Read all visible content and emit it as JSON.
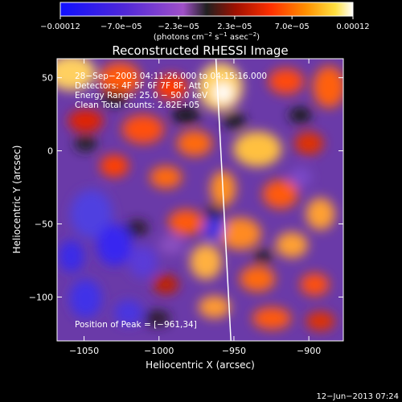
{
  "chart_data": {
    "type": "heatmap",
    "title": "Reconstructed RHESSI Image",
    "xlabel": "Heliocentric X (arcsec)",
    "ylabel": "Heliocentric Y (arcsec)",
    "xlim": [
      -1068,
      -877
    ],
    "ylim": [
      -130,
      63
    ],
    "x_ticks": [
      {
        "value": -1050,
        "label": "−1050"
      },
      {
        "value": -1000,
        "label": "−1000"
      },
      {
        "value": -950,
        "label": "−950"
      },
      {
        "value": -900,
        "label": "−900"
      }
    ],
    "y_ticks": [
      {
        "value": 50,
        "label": "50"
      },
      {
        "value": 0,
        "label": "0"
      },
      {
        "value": -50,
        "label": "−50"
      },
      {
        "value": -100,
        "label": "−100"
      }
    ],
    "colorbar": {
      "range": [
        -0.00012,
        0.00012
      ],
      "ticks": [
        {
          "value": -0.00012,
          "label": "−0.00012"
        },
        {
          "value": -7e-05,
          "label": "−7.0e−05"
        },
        {
          "value": -2.3e-05,
          "label": "−2.3e−05"
        },
        {
          "value": 2.3e-05,
          "label": "2.3e−05"
        },
        {
          "value": 7e-05,
          "label": "7.0e−05"
        },
        {
          "value": 0.00012,
          "label": "0.00012"
        }
      ],
      "unit_parts": [
        "(photons cm",
        "−2",
        " s",
        "−1",
        " asec",
        "−2",
        ")"
      ]
    },
    "annotations": [
      "28−Sep−2003 04:11:26.000 to 04:15:16.000",
      "Detectors: 4F 5F 6F 7F 8F, Att 0",
      "Energy Range: 25.0 − 50.0 keV",
      "Clean     Total counts: 2.82E+05"
    ],
    "peak_label": "Position of Peak = [−961,34]",
    "peak": [
      -961,
      34
    ],
    "limb_line": [
      [
        -962,
        63
      ],
      [
        -952,
        -130
      ]
    ]
  },
  "footer": {
    "timestamp": "12−Jun−2013 07:24"
  }
}
